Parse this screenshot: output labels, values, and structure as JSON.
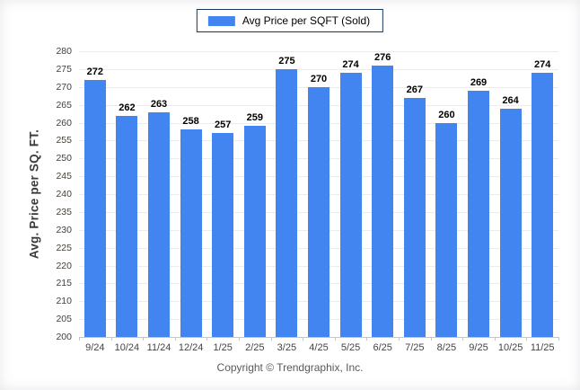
{
  "chart_data": {
    "type": "bar",
    "title": "",
    "legend": "Avg Price per SQFT (Sold)",
    "legend_position": "top-center",
    "xlabel": "",
    "ylabel": "Avg. Price per SQ. FT.",
    "categories": [
      "9/24",
      "10/24",
      "11/24",
      "12/24",
      "1/25",
      "2/25",
      "3/25",
      "4/25",
      "5/25",
      "6/25",
      "7/25",
      "8/25",
      "9/25",
      "10/25",
      "11/25"
    ],
    "values": [
      272,
      262,
      263,
      258,
      257,
      259,
      275,
      270,
      274,
      276,
      267,
      260,
      269,
      264,
      274
    ],
    "ylim": [
      200,
      280
    ],
    "ytick_step": 5,
    "grid": "horizontal",
    "bar_color": "#4285F0",
    "legend_border_color": "#17375E",
    "value_labels": true
  },
  "footer": {
    "text": "Copyright © Trendgraphix, Inc."
  }
}
